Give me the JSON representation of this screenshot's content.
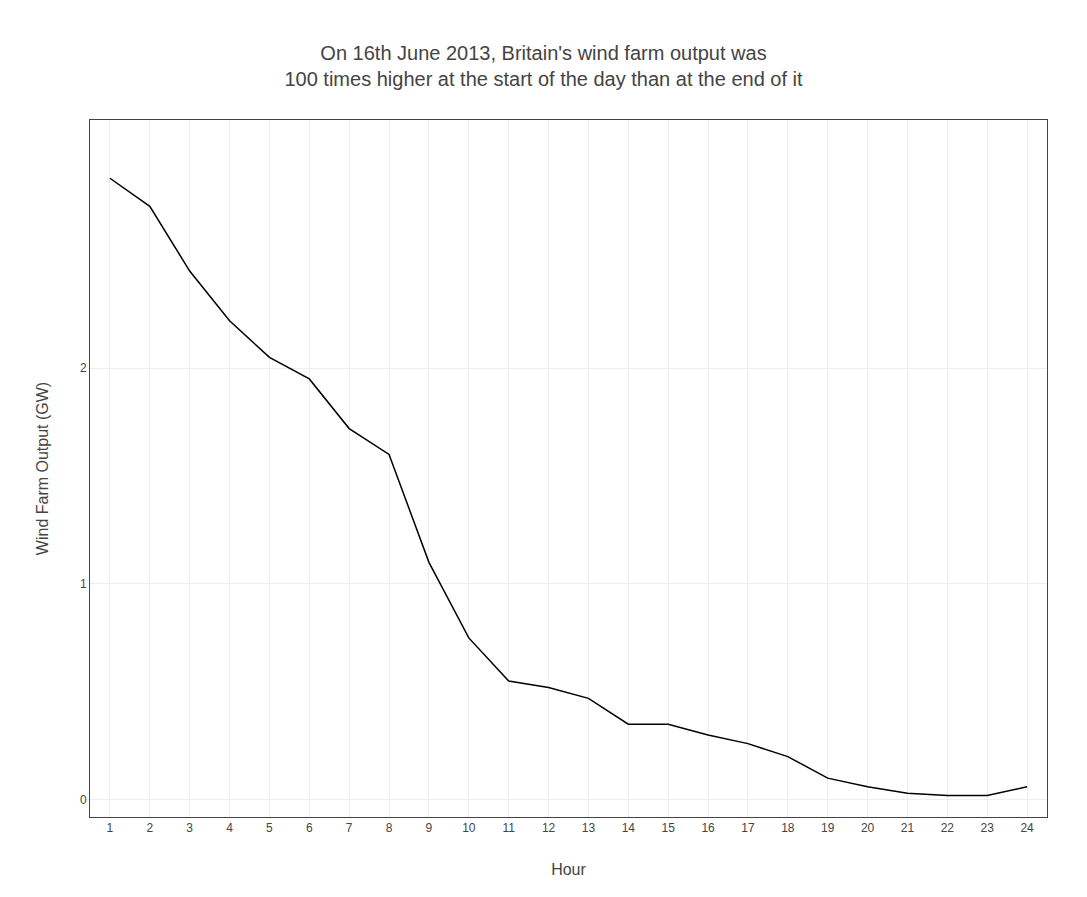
{
  "chart_data": {
    "type": "line",
    "title": "On 16th June 2013, Britain's wind farm output was\n100 times higher at the start of the day than at the end of it",
    "xlabel": "Hour",
    "ylabel": "Wind Farm Output (GW)",
    "x": [
      1,
      2,
      3,
      4,
      5,
      6,
      7,
      8,
      9,
      10,
      11,
      12,
      13,
      14,
      15,
      16,
      17,
      18,
      19,
      20,
      21,
      22,
      23,
      24
    ],
    "values": [
      2.88,
      2.75,
      2.45,
      2.22,
      2.05,
      1.95,
      1.72,
      1.6,
      1.1,
      0.75,
      0.55,
      0.52,
      0.47,
      0.35,
      0.35,
      0.3,
      0.26,
      0.2,
      0.1,
      0.06,
      0.03,
      0.02,
      0.02,
      0.06
    ],
    "color": "#000000",
    "xlim": [
      0.5,
      24.5
    ],
    "ylim": [
      -0.08,
      3.15
    ],
    "xticks": [
      1,
      2,
      3,
      4,
      5,
      6,
      7,
      8,
      9,
      10,
      11,
      12,
      13,
      14,
      15,
      16,
      17,
      18,
      19,
      20,
      21,
      22,
      23,
      24
    ],
    "yticks": [
      0,
      1,
      2
    ],
    "grid": true
  }
}
